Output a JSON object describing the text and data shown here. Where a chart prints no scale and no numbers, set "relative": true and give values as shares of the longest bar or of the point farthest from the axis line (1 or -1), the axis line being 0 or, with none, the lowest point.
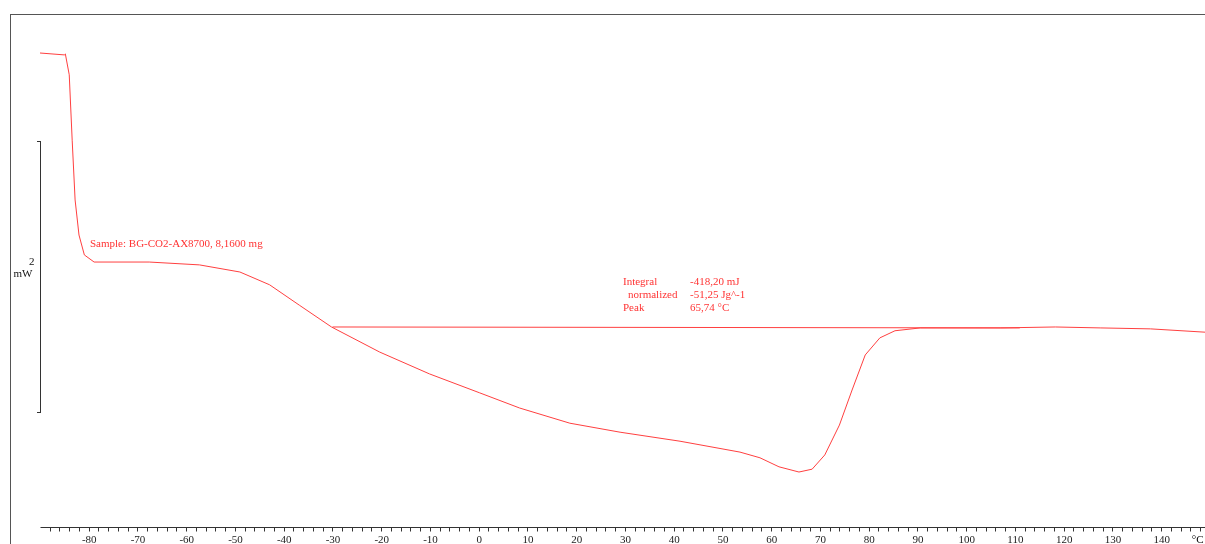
{
  "chart_data": {
    "type": "line",
    "relative": true,
    "xlabel": "°C",
    "ylabel": "mW",
    "tick_labels": "x",
    "legend": false,
    "marker": "none",
    "line_style": "solid",
    "xlim": [
      -90,
      149
    ],
    "xticks": [
      {
        "value": -88,
        "label": null
      },
      {
        "value": -86,
        "label": null
      },
      {
        "value": -84,
        "label": null
      },
      {
        "value": -82,
        "label": null
      },
      -80,
      {
        "value": -78,
        "label": null
      },
      {
        "value": -76,
        "label": null
      },
      {
        "value": -74,
        "label": null
      },
      {
        "value": -72,
        "label": null
      },
      -70,
      {
        "value": -68,
        "label": null
      },
      {
        "value": -66,
        "label": null
      },
      {
        "value": -64,
        "label": null
      },
      {
        "value": -62,
        "label": null
      },
      -60,
      {
        "value": -58,
        "label": null
      },
      {
        "value": -56,
        "label": null
      },
      {
        "value": -54,
        "label": null
      },
      {
        "value": -52,
        "label": null
      },
      -50,
      {
        "value": -48,
        "label": null
      },
      {
        "value": -46,
        "label": null
      },
      {
        "value": -44,
        "label": null
      },
      {
        "value": -42,
        "label": null
      },
      -40,
      {
        "value": -38,
        "label": null
      },
      {
        "value": -36,
        "label": null
      },
      {
        "value": -34,
        "label": null
      },
      {
        "value": -32,
        "label": null
      },
      -30,
      {
        "value": -28,
        "label": null
      },
      {
        "value": -26,
        "label": null
      },
      {
        "value": -24,
        "label": null
      },
      {
        "value": -22,
        "label": null
      },
      -20,
      {
        "value": -18,
        "label": null
      },
      {
        "value": -16,
        "label": null
      },
      {
        "value": -14,
        "label": null
      },
      {
        "value": -12,
        "label": null
      },
      -10,
      {
        "value": -8,
        "label": null
      },
      {
        "value": -6,
        "label": null
      },
      {
        "value": -4,
        "label": null
      },
      {
        "value": -2,
        "label": null
      },
      0,
      {
        "value": 2,
        "label": null
      },
      {
        "value": 4,
        "label": null
      },
      {
        "value": 6,
        "label": null
      },
      {
        "value": 8,
        "label": null
      },
      10,
      {
        "value": 12,
        "label": null
      },
      {
        "value": 14,
        "label": null
      },
      {
        "value": 16,
        "label": null
      },
      {
        "value": 18,
        "label": null
      },
      20,
      {
        "value": 22,
        "label": null
      },
      {
        "value": 24,
        "label": null
      },
      {
        "value": 26,
        "label": null
      },
      {
        "value": 28,
        "label": null
      },
      30,
      {
        "value": 32,
        "label": null
      },
      {
        "value": 34,
        "label": null
      },
      {
        "value": 36,
        "label": null
      },
      {
        "value": 38,
        "label": null
      },
      40,
      {
        "value": 42,
        "label": null
      },
      {
        "value": 44,
        "label": null
      },
      {
        "value": 46,
        "label": null
      },
      {
        "value": 48,
        "label": null
      },
      50,
      {
        "value": 52,
        "label": null
      },
      {
        "value": 54,
        "label": null
      },
      {
        "value": 56,
        "label": null
      },
      {
        "value": 58,
        "label": null
      },
      60,
      {
        "value": 62,
        "label": null
      },
      {
        "value": 64,
        "label": null
      },
      {
        "value": 66,
        "label": null
      },
      {
        "value": 68,
        "label": null
      },
      70,
      {
        "value": 72,
        "label": null
      },
      {
        "value": 74,
        "label": null
      },
      {
        "value": 76,
        "label": null
      },
      {
        "value": 78,
        "label": null
      },
      80,
      {
        "value": 82,
        "label": null
      },
      {
        "value": 84,
        "label": null
      },
      {
        "value": 86,
        "label": null
      },
      {
        "value": 88,
        "label": null
      },
      90,
      {
        "value": 92,
        "label": null
      },
      {
        "value": 94,
        "label": null
      },
      {
        "value": 96,
        "label": null
      },
      {
        "value": 98,
        "label": null
      },
      100,
      {
        "value": 102,
        "label": null
      },
      {
        "value": 104,
        "label": null
      },
      {
        "value": 106,
        "label": null
      },
      {
        "value": 108,
        "label": null
      },
      110,
      {
        "value": 112,
        "label": null
      },
      {
        "value": 114,
        "label": null
      },
      {
        "value": 116,
        "label": null
      },
      {
        "value": 118,
        "label": null
      },
      120,
      {
        "value": 122,
        "label": null
      },
      {
        "value": 124,
        "label": null
      },
      {
        "value": 126,
        "label": null
      },
      {
        "value": 128,
        "label": null
      },
      130,
      {
        "value": 132,
        "label": null
      },
      {
        "value": 134,
        "label": null
      },
      {
        "value": 136,
        "label": null
      },
      {
        "value": 138,
        "label": null
      },
      140,
      {
        "value": 142,
        "label": null
      },
      {
        "value": 144,
        "label": null
      },
      {
        "value": 146,
        "label": null
      },
      {
        "value": 148,
        "label": null
      }
    ],
    "series": [
      {
        "color": "#ff4040",
        "x": [
          -90,
          -85,
          -84.8,
          -84,
          -83.4,
          -82.8,
          -82,
          -80.9,
          -78.9,
          -67.6,
          -57.3,
          -49,
          -42.9,
          -36.8,
          -30.2,
          -20.3,
          -10.1,
          0.2,
          8.4,
          18.7,
          29,
          41.3,
          53.6,
          57.7,
          61.6,
          65.7,
          68.4,
          71,
          74,
          76.6,
          79.3,
          82.3,
          85.4,
          90.6,
          107,
          118.3,
          127.5,
          137.8,
          149
        ],
        "values": [
          1.0,
          0.996,
          0.998,
          0.954,
          0.816,
          0.69,
          0.616,
          0.574,
          0.559,
          0.559,
          0.553,
          0.538,
          0.511,
          0.468,
          0.422,
          0.369,
          0.323,
          0.283,
          0.251,
          0.219,
          0.2,
          0.181,
          0.158,
          0.146,
          0.127,
          0.116,
          0.122,
          0.152,
          0.215,
          0.289,
          0.363,
          0.399,
          0.414,
          0.42,
          0.42,
          0.422,
          0.42,
          0.418,
          0.411
        ]
      },
      {
        "type": "line",
        "color": "#ff4040",
        "x": [
          -30,
          111
        ],
        "values": [
          0.422,
          0.42
        ]
      }
    ],
    "annotations": [
      "Sample: BG-CO2-AX8700, 8,1600 mg",
      "Integral",
      "-418,20 mJ",
      "normalized",
      "-51,25 Jg^-1",
      "Peak",
      "65,74 °C",
      "2"
    ]
  }
}
